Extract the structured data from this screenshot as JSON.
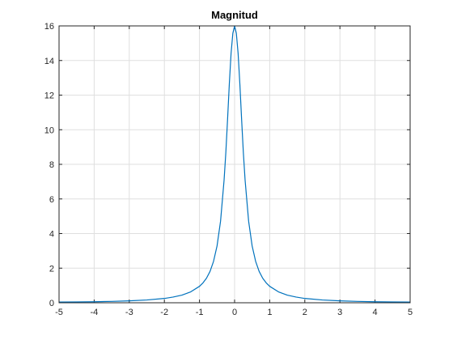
{
  "chart_data": {
    "type": "line",
    "title": "Magnitud",
    "xlabel": "",
    "ylabel": "",
    "xlim": [
      -5,
      5
    ],
    "ylim": [
      0,
      16
    ],
    "grid": true,
    "x_ticks": [
      -5,
      -4,
      -3,
      -2,
      -1,
      0,
      1,
      2,
      3,
      4,
      5
    ],
    "x_tick_labels": [
      "-5",
      "-4",
      "-3",
      "-2",
      "-1",
      "0",
      "1",
      "2",
      "3",
      "4",
      "5"
    ],
    "y_ticks": [
      0,
      2,
      4,
      6,
      8,
      10,
      12,
      14,
      16
    ],
    "y_tick_labels": [
      "0",
      "2",
      "4",
      "6",
      "8",
      "10",
      "12",
      "14",
      "16"
    ],
    "series": [
      {
        "color": "#0072bd",
        "x": [
          -5,
          -4.5,
          -4,
          -3.5,
          -3,
          -2.5,
          -2,
          -1.75,
          -1.5,
          -1.25,
          -1,
          -0.9,
          -0.8,
          -0.7,
          -0.6,
          -0.5,
          -0.4,
          -0.3,
          -0.25,
          -0.2,
          -0.15,
          -0.1,
          -0.05,
          0,
          0.05,
          0.1,
          0.15,
          0.2,
          0.25,
          0.3,
          0.4,
          0.5,
          0.6,
          0.7,
          0.8,
          0.9,
          1,
          1.25,
          1.5,
          1.75,
          2,
          2.5,
          3,
          3.5,
          4,
          4.5,
          5
        ],
        "y": [
          0.04,
          0.05,
          0.06,
          0.08,
          0.11,
          0.16,
          0.25,
          0.33,
          0.44,
          0.63,
          0.95,
          1.15,
          1.42,
          1.81,
          2.39,
          3.28,
          4.71,
          7.07,
          8.66,
          10.6,
          12.65,
          14.42,
          15.57,
          16.0,
          15.57,
          14.42,
          12.65,
          10.6,
          8.66,
          7.07,
          4.71,
          3.28,
          2.39,
          1.81,
          1.42,
          1.15,
          0.95,
          0.63,
          0.44,
          0.33,
          0.25,
          0.16,
          0.11,
          0.08,
          0.06,
          0.05,
          0.04
        ]
      }
    ]
  }
}
